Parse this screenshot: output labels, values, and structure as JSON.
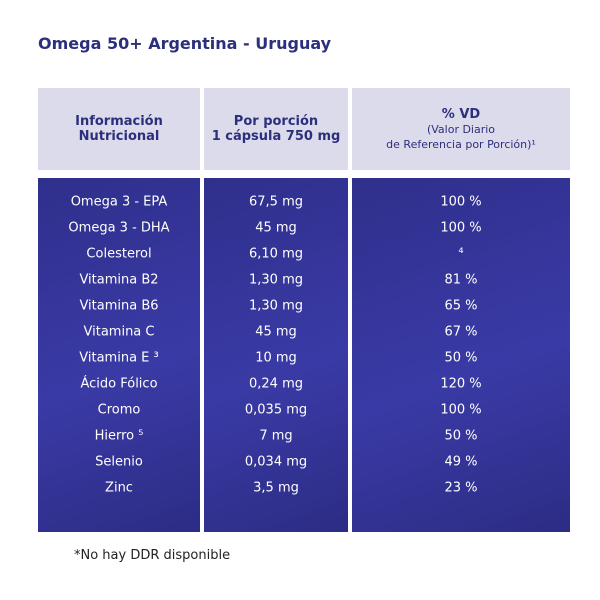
{
  "title": "Omega 50+ Argentina - Uruguay",
  "table": {
    "header": [
      [
        "Información",
        "Nutricional"
      ],
      [
        "Por porción",
        "1 cápsula 750 mg"
      ],
      [
        "% VD",
        "(Valor Diario",
        "de Referencia por Porción)¹"
      ]
    ],
    "rows": [
      [
        "Omega 3 - EPA",
        "67,5 mg",
        "100 %"
      ],
      [
        "Omega 3 - DHA",
        "45 mg",
        "100 %"
      ],
      [
        "Colesterol",
        "6,10 mg",
        "⁴"
      ],
      [
        "Vitamina B2",
        "1,30 mg",
        "81 %"
      ],
      [
        "Vitamina B6",
        "1,30 mg",
        "65 %"
      ],
      [
        "Vitamina C",
        "45 mg",
        "67 %"
      ],
      [
        "Vitamina E ³",
        "10 mg",
        "50 %"
      ],
      [
        "Ácido Fólico",
        "0,24 mg",
        "120 %"
      ],
      [
        "Cromo",
        "0,035 mg",
        "100 %"
      ],
      [
        "Hierro ⁵",
        "7 mg",
        "50 %"
      ],
      [
        "Selenio",
        "0,034 mg",
        "49 %"
      ],
      [
        "Zinc",
        "3,5 mg",
        "23 %"
      ]
    ]
  },
  "footnote": "*No hay DDR disponible"
}
